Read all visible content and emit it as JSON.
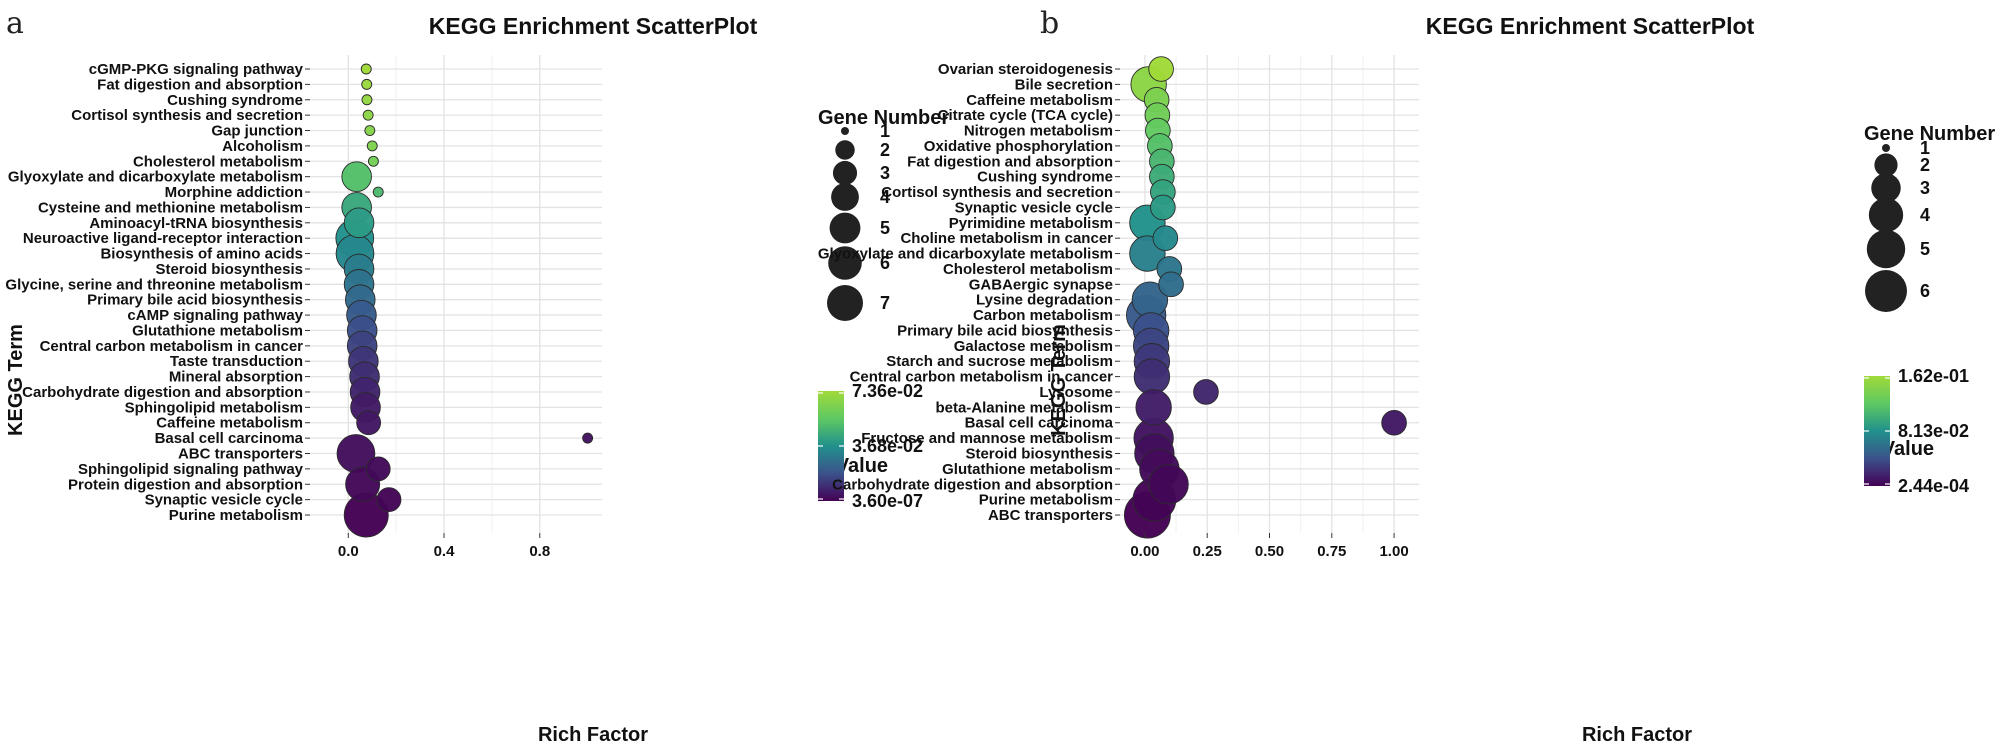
{
  "chart_data": [
    {
      "type": "scatter",
      "panel_label": "a",
      "title": "KEGG Enrichment ScatterPlot",
      "xlabel": "Rich Factor",
      "ylabel": "KEGG Term",
      "xlim": [
        -0.16,
        1.06
      ],
      "xticks": [
        0.0,
        0.4,
        0.8
      ],
      "xtick_labels": [
        "0.0",
        "0.4",
        "0.8"
      ],
      "size_legend_title": "Gene Number",
      "size_legend": [
        1,
        2,
        3,
        4,
        5,
        6,
        7
      ],
      "color_legend_title": "p Value",
      "color_legend_labels": [
        "7.36e-02",
        "3.68e-02",
        "3.60e-07"
      ],
      "color_range": [
        3.6e-07,
        0.0736
      ],
      "terms": [
        {
          "label": "cGMP-PKG signaling pathway",
          "x": 0.075,
          "genes": 1,
          "p": 0.0736
        },
        {
          "label": "Fat digestion and absorption",
          "x": 0.077,
          "genes": 1,
          "p": 0.072
        },
        {
          "label": "Cushing syndrome",
          "x": 0.078,
          "genes": 1,
          "p": 0.07
        },
        {
          "label": "Cortisol synthesis and secretion",
          "x": 0.083,
          "genes": 1,
          "p": 0.068
        },
        {
          "label": "Gap junction",
          "x": 0.09,
          "genes": 1,
          "p": 0.066
        },
        {
          "label": "Alcoholism",
          "x": 0.1,
          "genes": 1,
          "p": 0.064
        },
        {
          "label": "Cholesterol metabolism",
          "x": 0.105,
          "genes": 1,
          "p": 0.061
        },
        {
          "label": "Glyoxylate and dicarboxylate metabolism",
          "x": 0.035,
          "genes": 3,
          "p": 0.052
        },
        {
          "label": "Morphine addiction",
          "x": 0.125,
          "genes": 1,
          "p": 0.05
        },
        {
          "label": "Cysteine and methionine metabolism",
          "x": 0.035,
          "genes": 3,
          "p": 0.044
        },
        {
          "label": "Aminoacyl-tRNA biosynthesis",
          "x": 0.045,
          "genes": 3,
          "p": 0.04
        },
        {
          "label": "Neuroactive ligand-receptor interaction",
          "x": 0.027,
          "genes": 5,
          "p": 0.037
        },
        {
          "label": "Biosynthesis of amino acids",
          "x": 0.028,
          "genes": 5,
          "p": 0.034
        },
        {
          "label": "Steroid biosynthesis",
          "x": 0.045,
          "genes": 3,
          "p": 0.031
        },
        {
          "label": "Glycine, serine and threonine metabolism",
          "x": 0.045,
          "genes": 3,
          "p": 0.028
        },
        {
          "label": "Primary bile acid biosynthesis",
          "x": 0.05,
          "genes": 3,
          "p": 0.025
        },
        {
          "label": "cAMP signaling pathway",
          "x": 0.055,
          "genes": 3,
          "p": 0.021
        },
        {
          "label": "Glutathione metabolism",
          "x": 0.058,
          "genes": 3,
          "p": 0.018
        },
        {
          "label": "Central carbon metabolism in cancer",
          "x": 0.058,
          "genes": 3,
          "p": 0.015
        },
        {
          "label": "Taste transduction",
          "x": 0.063,
          "genes": 3,
          "p": 0.012
        },
        {
          "label": "Mineral absorption",
          "x": 0.068,
          "genes": 3,
          "p": 0.01
        },
        {
          "label": "Carbohydrate digestion and absorption",
          "x": 0.07,
          "genes": 3,
          "p": 0.008
        },
        {
          "label": "Sphingolipid metabolism",
          "x": 0.072,
          "genes": 3,
          "p": 0.006
        },
        {
          "label": "Caffeine metabolism",
          "x": 0.085,
          "genes": 2,
          "p": 0.005
        },
        {
          "label": "Basal cell carcinoma",
          "x": 1.0,
          "genes": 1,
          "p": 0.004
        },
        {
          "label": "ABC transporters",
          "x": 0.032,
          "genes": 5,
          "p": 0.003
        },
        {
          "label": "Sphingolipid signaling pathway",
          "x": 0.125,
          "genes": 2,
          "p": 0.002
        },
        {
          "label": "Protein digestion and absorption",
          "x": 0.06,
          "genes": 4,
          "p": 0.0015
        },
        {
          "label": "Synaptic vesicle cycle",
          "x": 0.17,
          "genes": 2,
          "p": 0.001
        },
        {
          "label": "Purine metabolism",
          "x": 0.075,
          "genes": 7,
          "p": 4e-07
        }
      ]
    },
    {
      "type": "scatter",
      "panel_label": "b",
      "title": "KEGG Enrichment ScatterPlot",
      "xlabel": "Rich Factor",
      "ylabel": "KEGG Term",
      "xlim": [
        -0.1,
        1.1
      ],
      "xticks": [
        0.0,
        0.25,
        0.5,
        0.75,
        1.0
      ],
      "xtick_labels": [
        "0.00",
        "0.25",
        "0.50",
        "0.75",
        "1.00"
      ],
      "size_legend_title": "Gene Number",
      "size_legend": [
        1,
        2,
        3,
        4,
        5,
        6
      ],
      "color_legend_title": "p Value",
      "color_legend_labels": [
        "1.62e-01",
        "8.13e-02",
        "2.44e-04"
      ],
      "color_range": [
        0.000244,
        0.162
      ],
      "terms": [
        {
          "label": "Ovarian steroidogenesis",
          "x": 0.065,
          "genes": 2,
          "p": 0.162
        },
        {
          "label": "Bile secretion",
          "x": 0.015,
          "genes": 4,
          "p": 0.15
        },
        {
          "label": "Caffeine metabolism",
          "x": 0.047,
          "genes": 2,
          "p": 0.14
        },
        {
          "label": "Citrate cycle (TCA cycle)",
          "x": 0.05,
          "genes": 2,
          "p": 0.132
        },
        {
          "label": "Nitrogen metabolism",
          "x": 0.052,
          "genes": 2,
          "p": 0.124
        },
        {
          "label": "Oxidative phosphorylation",
          "x": 0.06,
          "genes": 2,
          "p": 0.116
        },
        {
          "label": "Fat digestion and absorption",
          "x": 0.068,
          "genes": 2,
          "p": 0.108
        },
        {
          "label": "Cushing syndrome",
          "x": 0.068,
          "genes": 2,
          "p": 0.1
        },
        {
          "label": "Cortisol synthesis and secretion",
          "x": 0.072,
          "genes": 2,
          "p": 0.094
        },
        {
          "label": "Synaptic vesicle cycle",
          "x": 0.072,
          "genes": 2,
          "p": 0.088
        },
        {
          "label": "Pyrimidine metabolism",
          "x": 0.01,
          "genes": 4,
          "p": 0.082
        },
        {
          "label": "Choline metabolism in cancer",
          "x": 0.082,
          "genes": 2,
          "p": 0.076
        },
        {
          "label": "Glyoxylate and dicarboxylate metabolism",
          "x": 0.01,
          "genes": 4,
          "p": 0.07
        },
        {
          "label": "Cholesterol metabolism",
          "x": 0.098,
          "genes": 2,
          "p": 0.064
        },
        {
          "label": "GABAergic synapse",
          "x": 0.105,
          "genes": 2,
          "p": 0.058
        },
        {
          "label": "Lysine degradation",
          "x": 0.02,
          "genes": 4,
          "p": 0.052
        },
        {
          "label": "Carbon metabolism",
          "x": 0.005,
          "genes": 5,
          "p": 0.046
        },
        {
          "label": "Primary bile acid biosynthesis",
          "x": 0.025,
          "genes": 4,
          "p": 0.04
        },
        {
          "label": "Galactose metabolism",
          "x": 0.025,
          "genes": 4,
          "p": 0.034
        },
        {
          "label": "Starch and sucrose metabolism",
          "x": 0.028,
          "genes": 4,
          "p": 0.028
        },
        {
          "label": "Central carbon metabolism in cancer",
          "x": 0.028,
          "genes": 4,
          "p": 0.022
        },
        {
          "label": "Lysosome",
          "x": 0.245,
          "genes": 2,
          "p": 0.018
        },
        {
          "label": "beta-Alanine metabolism",
          "x": 0.035,
          "genes": 4,
          "p": 0.014
        },
        {
          "label": "Basal cell carcinoma",
          "x": 1.0,
          "genes": 2,
          "p": 0.012
        },
        {
          "label": "Fructose and mannose metabolism",
          "x": 0.035,
          "genes": 5,
          "p": 0.009
        },
        {
          "label": "Steroid biosynthesis",
          "x": 0.038,
          "genes": 5,
          "p": 0.007
        },
        {
          "label": "Glutathione metabolism",
          "x": 0.058,
          "genes": 5,
          "p": 0.005
        },
        {
          "label": "Carbohydrate digestion and absorption",
          "x": 0.095,
          "genes": 5,
          "p": 0.003
        },
        {
          "label": "Purine metabolism",
          "x": 0.038,
          "genes": 6,
          "p": 0.0015
        },
        {
          "label": "ABC transporters",
          "x": 0.01,
          "genes": 7,
          "p": 0.000244
        }
      ]
    }
  ]
}
